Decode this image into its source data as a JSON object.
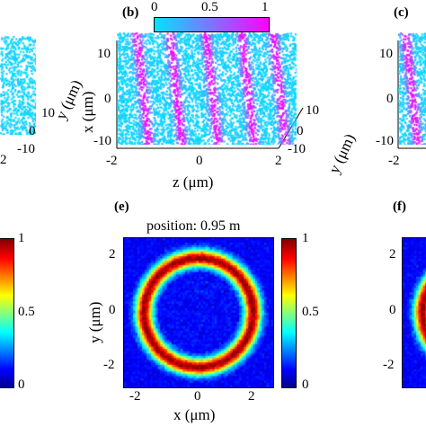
{
  "panels": {
    "b": {
      "letter": "(b)",
      "colorbar": {
        "ticks": [
          "0",
          "0.5",
          "1"
        ],
        "colors": [
          "#00e5ff",
          "#ff00ff"
        ]
      },
      "x_ticks": [
        "10",
        "0",
        "-10"
      ],
      "z_ticks": [
        "-2",
        "0",
        "2"
      ],
      "y_ticks": [
        "10",
        "0",
        "-10"
      ],
      "x_label": "x (μm)",
      "z_label": "z (μm)",
      "y_label": "y (μm)"
    },
    "c": {
      "letter": "(c)",
      "x_ticks": [
        "10",
        "0",
        "-10"
      ],
      "z_ticks": [
        "-2"
      ]
    },
    "a": {
      "y_ticks": [
        "10",
        "0",
        "-10"
      ],
      "z_ticks": [
        "2"
      ],
      "y_label": "y (μm)"
    },
    "d": {
      "colorbar_ticks": [
        "1",
        "0.5",
        "0"
      ]
    },
    "e": {
      "letter": "(e)",
      "title": "position: 0.95 m",
      "y_ticks": [
        "2",
        "0",
        "-2"
      ],
      "x_ticks": [
        "-2",
        "0",
        "2"
      ],
      "x_label": "x (μm)",
      "y_label": "y (μm)",
      "colorbar_ticks": [
        "1",
        "0.5",
        "0"
      ]
    },
    "f": {
      "letter": "(f)",
      "y_ticks": [
        "2",
        "0",
        "-2"
      ]
    }
  },
  "chart_data": [
    {
      "type": "scatter",
      "panel": "b",
      "description_from_axes": "3D particle scatter colored 0–1",
      "xlabel": "z (μm)",
      "ylabel": "x (μm)",
      "zlabel": "y (μm)",
      "xlim": [
        -2,
        2
      ],
      "ylim": [
        -10,
        10
      ],
      "zlim": [
        -10,
        10
      ],
      "colorbar": [
        0,
        1
      ]
    },
    {
      "type": "heatmap",
      "panel": "e",
      "title": "position: 0.95 m",
      "xlabel": "x (μm)",
      "ylabel": "y (μm)",
      "xlim": [
        -2.6,
        2.6
      ],
      "ylim": [
        -2.6,
        2.6
      ],
      "ring_radius": 1.9,
      "ring_width": 0.35,
      "colorbar": [
        0,
        1
      ],
      "colormap": "jet"
    }
  ]
}
